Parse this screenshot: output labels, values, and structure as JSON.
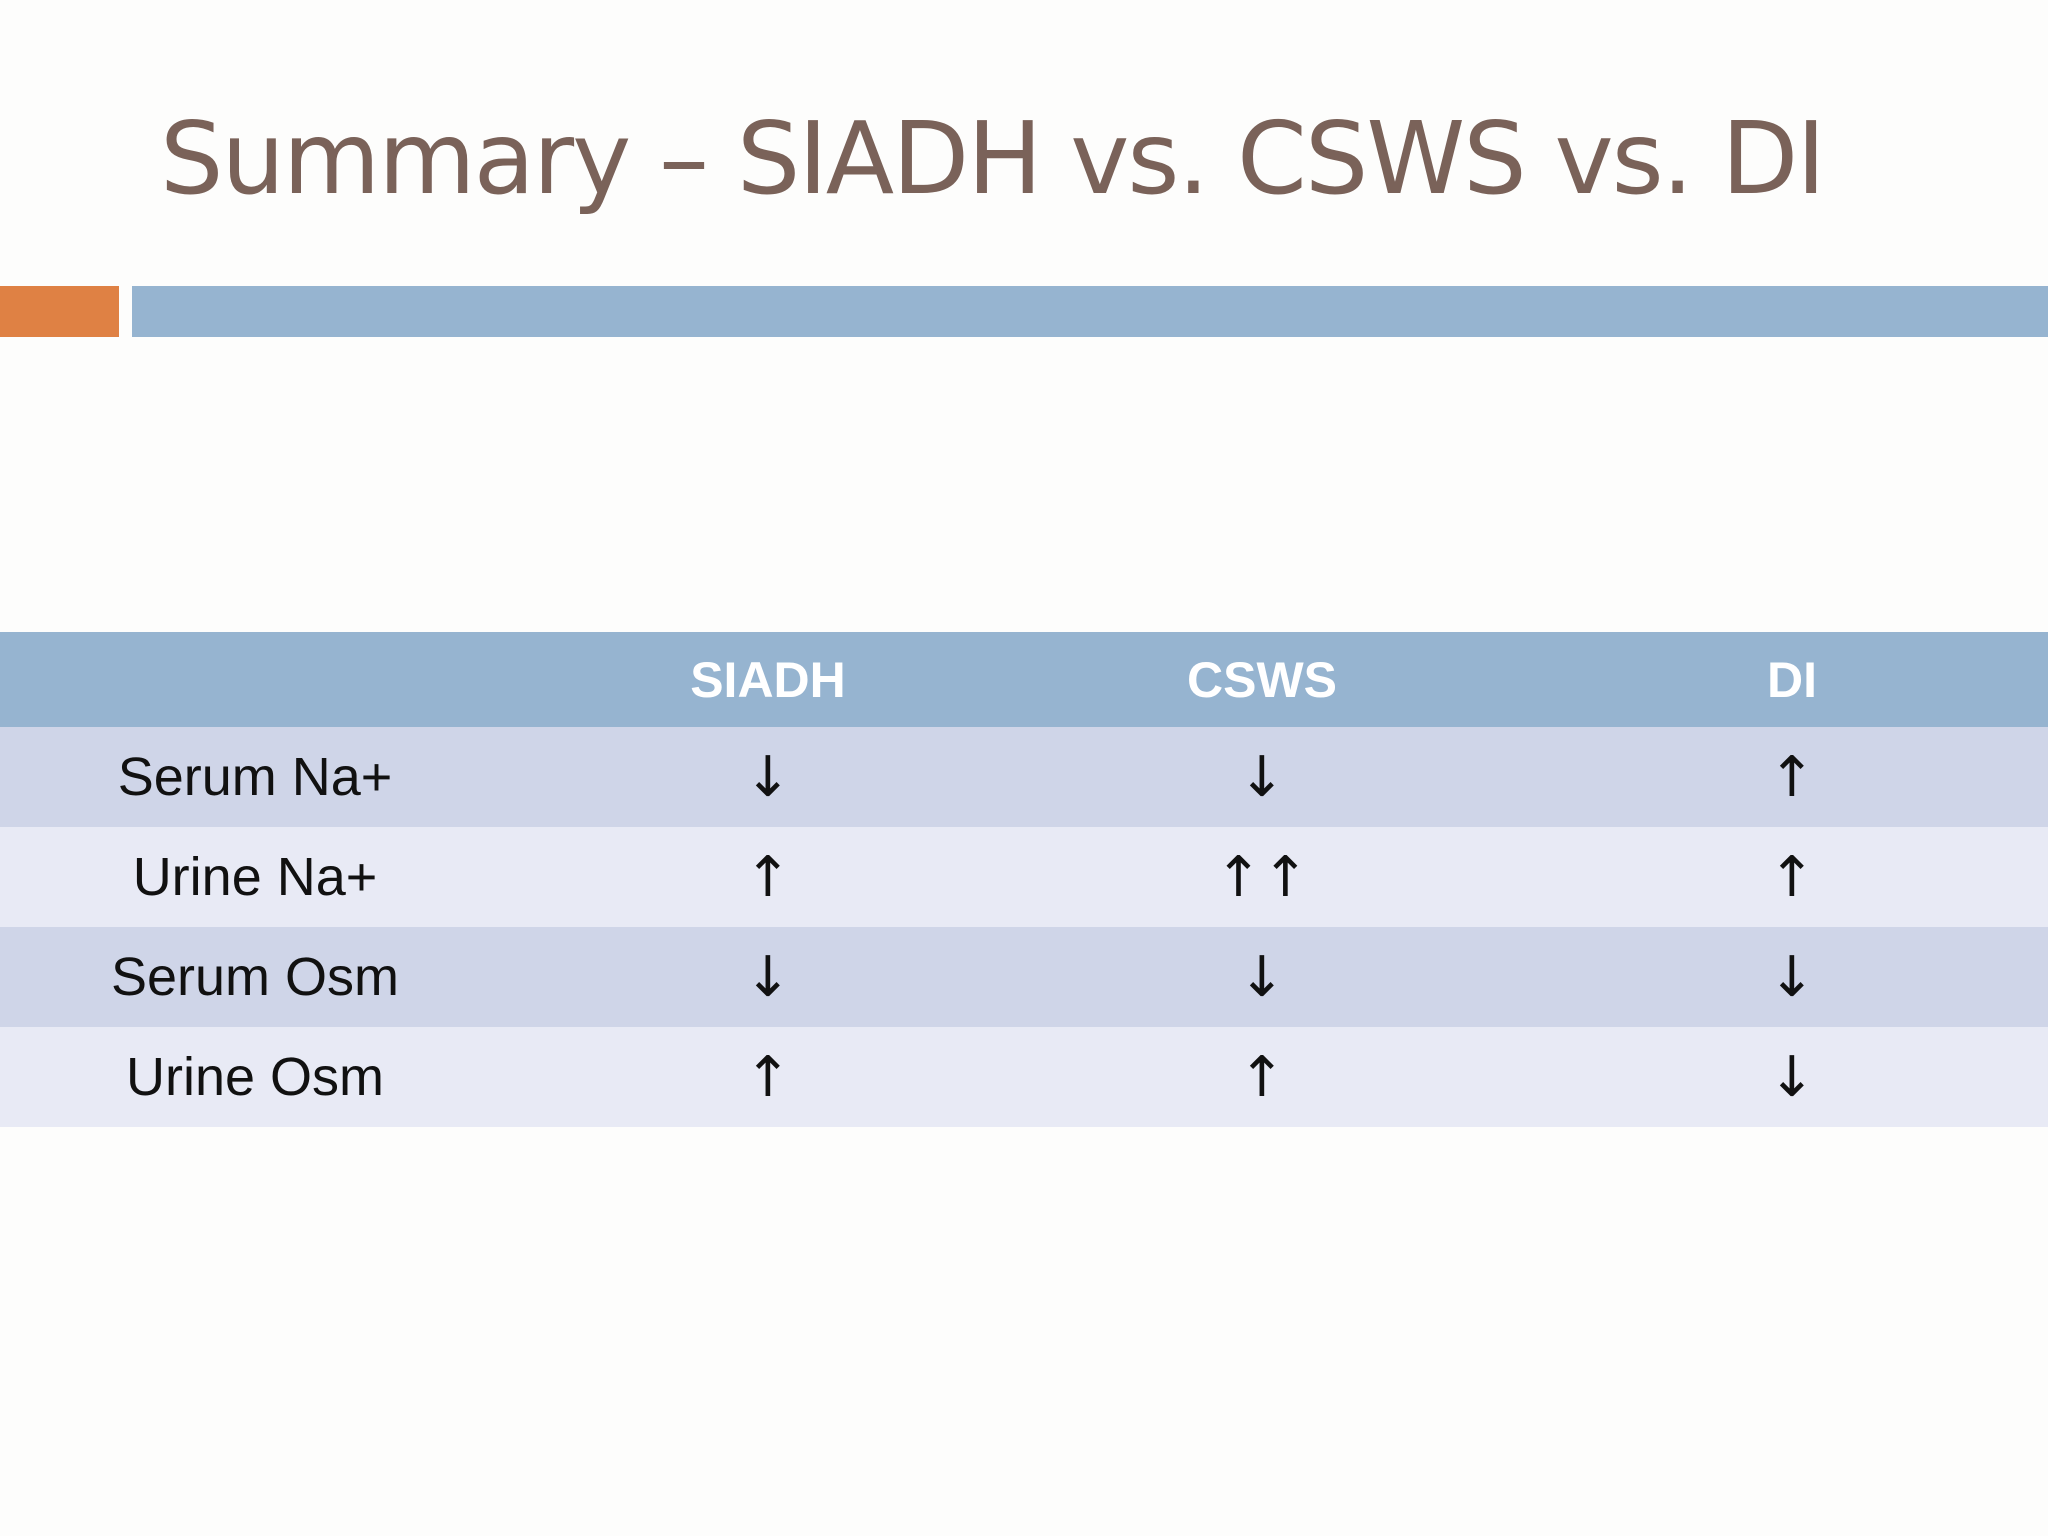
{
  "header": {
    "title": "Summary – SIADH vs. CSWS vs. DI"
  },
  "table": {
    "columns": [
      "SIADH",
      "CSWS",
      "DI"
    ],
    "rows": [
      [
        "Serum Na+",
        "↓",
        "↓",
        "↑"
      ],
      [
        "Urine Na+",
        "↑",
        "↑↑",
        "↑"
      ],
      [
        "Serum Osm",
        "↓",
        "↓",
        "↓"
      ],
      [
        "Urine Osm",
        "↑",
        "↑",
        "↓"
      ]
    ]
  }
}
